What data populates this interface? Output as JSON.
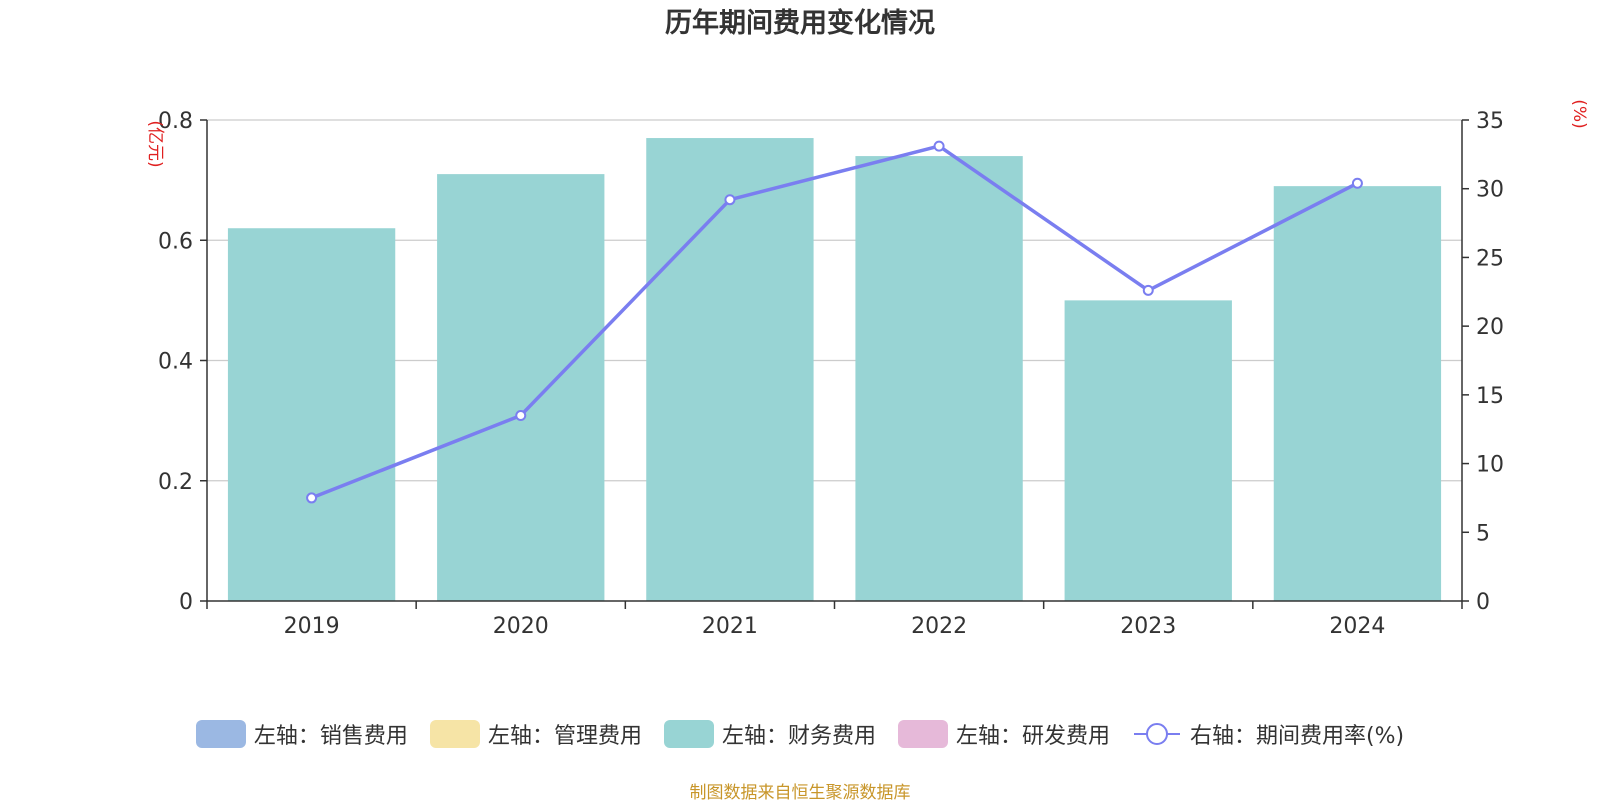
{
  "title": "历年期间费用变化情况",
  "source": "制图数据来自恒生聚源数据库",
  "chart_data": {
    "type": "bar",
    "title": "历年期间费用变化情况",
    "categories": [
      "2019",
      "2020",
      "2021",
      "2022",
      "2023",
      "2024"
    ],
    "left_axis": {
      "unit_label": "(亿元)",
      "ylim": [
        0,
        0.8
      ],
      "ticks": [
        "0",
        "0.2",
        "0.4",
        "0.6",
        "0.8"
      ],
      "tick_values": [
        0,
        0.2,
        0.4,
        0.6,
        0.8
      ]
    },
    "right_axis": {
      "unit_label": "(%)",
      "ylim": [
        0,
        35
      ],
      "ticks": [
        "0",
        "5",
        "10",
        "15",
        "20",
        "25",
        "30",
        "35"
      ],
      "tick_values": [
        0,
        5,
        10,
        15,
        20,
        25,
        30,
        35
      ]
    },
    "grid": true,
    "legend_position": "bottom",
    "series": [
      {
        "name": "左轴：销售费用",
        "kind": "bar",
        "axis": "left",
        "color": "#9bb8e3",
        "values": [
          0,
          0,
          0,
          0,
          0,
          0
        ]
      },
      {
        "name": "左轴：管理费用",
        "kind": "bar",
        "axis": "left",
        "color": "#f6e4a6",
        "values": [
          0,
          0,
          0,
          0,
          0,
          0
        ]
      },
      {
        "name": "左轴：财务费用",
        "kind": "bar",
        "axis": "left",
        "color": "#98d4d4",
        "values": [
          0.62,
          0.71,
          0.77,
          0.74,
          0.5,
          0.69
        ]
      },
      {
        "name": "左轴：研发费用",
        "kind": "bar",
        "axis": "left",
        "color": "#e6b9d9",
        "values": [
          0,
          0,
          0,
          0,
          0,
          0
        ]
      },
      {
        "name": "右轴：期间费用率(%)",
        "kind": "line",
        "axis": "right",
        "color": "#7a7ef0",
        "values": [
          7.5,
          13.5,
          29.2,
          33.1,
          22.6,
          30.4
        ]
      }
    ]
  }
}
